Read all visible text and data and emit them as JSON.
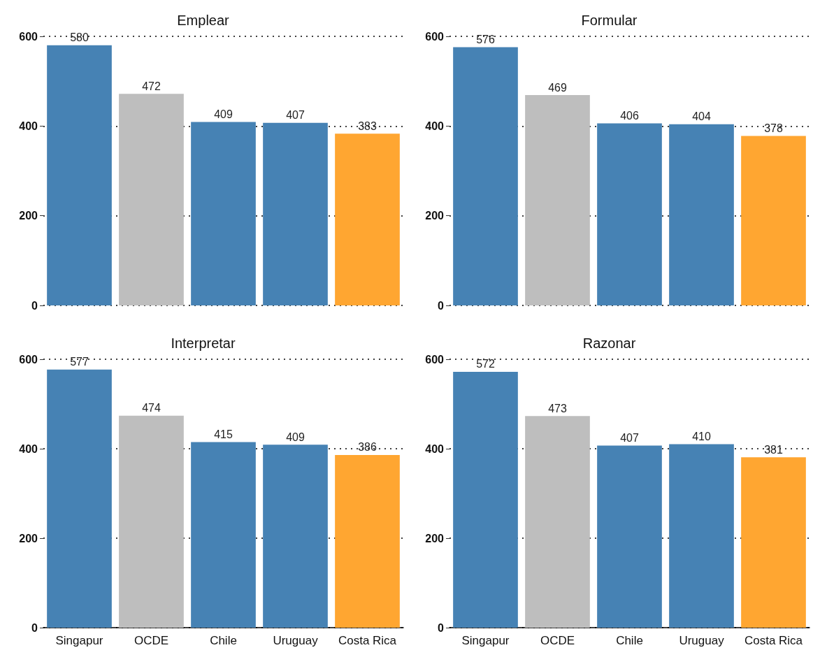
{
  "chart_data": [
    {
      "type": "bar",
      "title": "Emplear",
      "categories": [
        null,
        null,
        null,
        null,
        null
      ],
      "values": [
        580,
        472,
        409,
        407,
        383
      ],
      "colors": [
        "#4682b4",
        "#bebebe",
        "#4682b4",
        "#4682b4",
        "#ffa631"
      ],
      "ylim": [
        0,
        600
      ],
      "yticks": [
        0,
        200,
        400,
        600
      ],
      "grid": "y",
      "data_labels": true,
      "tick_labels": "y"
    },
    {
      "type": "bar",
      "title": "Formular",
      "categories": [
        null,
        null,
        null,
        null,
        null
      ],
      "values": [
        576,
        469,
        406,
        404,
        378
      ],
      "colors": [
        "#4682b4",
        "#bebebe",
        "#4682b4",
        "#4682b4",
        "#ffa631"
      ],
      "ylim": [
        0,
        600
      ],
      "yticks": [
        0,
        200,
        400,
        600
      ],
      "grid": "y",
      "data_labels": true,
      "tick_labels": "y"
    },
    {
      "type": "bar",
      "title": "Interpretar",
      "categories": [
        "Singapur",
        "OCDE",
        "Chile",
        "Uruguay",
        "Costa Rica"
      ],
      "values": [
        577,
        474,
        415,
        409,
        386
      ],
      "colors": [
        "#4682b4",
        "#bebebe",
        "#4682b4",
        "#4682b4",
        "#ffa631"
      ],
      "ylim": [
        0,
        600
      ],
      "yticks": [
        0,
        200,
        400,
        600
      ],
      "grid": "y",
      "data_labels": true
    },
    {
      "type": "bar",
      "title": "Razonar",
      "categories": [
        "Singapur",
        "OCDE",
        "Chile",
        "Uruguay",
        "Costa Rica"
      ],
      "values": [
        572,
        473,
        407,
        410,
        381
      ],
      "colors": [
        "#4682b4",
        "#bebebe",
        "#4682b4",
        "#4682b4",
        "#ffa631"
      ],
      "ylim": [
        0,
        600
      ],
      "yticks": [
        0,
        200,
        400,
        600
      ],
      "grid": "y",
      "data_labels": true
    }
  ]
}
